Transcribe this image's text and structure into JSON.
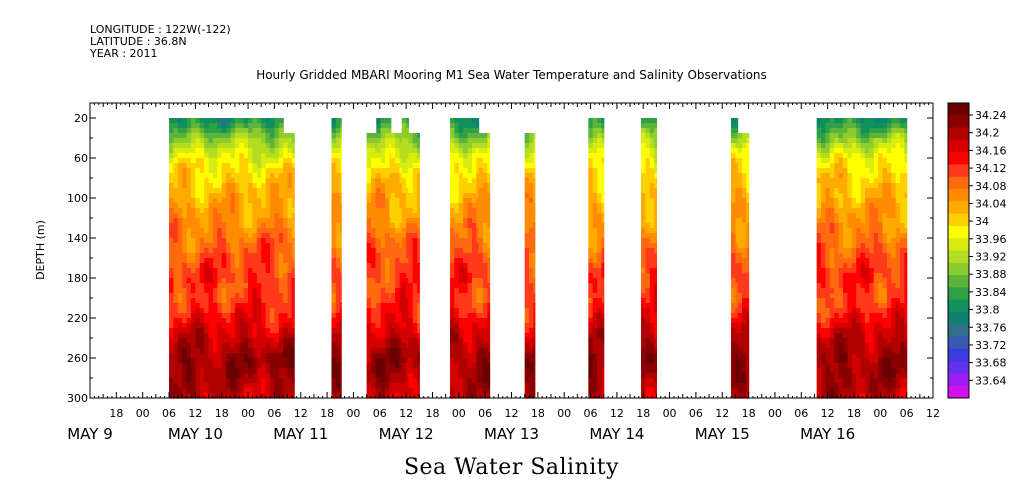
{
  "header": {
    "lines": [
      "LONGITUDE : 122W(-122)",
      "LATITUDE : 36.8N",
      "YEAR : 2011"
    ]
  },
  "chart_data": {
    "type": "heatmap",
    "title": "Hourly Gridded MBARI Mooring M1 Sea Water Temperature and Salinity Observations",
    "footer": "Sea Water Salinity",
    "ylabel": "DEPTH (m)",
    "y_reversed": true,
    "ylim": [
      300,
      5
    ],
    "y_ticks": [
      20,
      60,
      100,
      140,
      180,
      220,
      260,
      300
    ],
    "x_hour_ticks": [
      "18",
      "00",
      "06",
      "12",
      "18",
      "00",
      "06",
      "12",
      "18",
      "00",
      "06",
      "12",
      "18",
      "00",
      "06",
      "12",
      "18",
      "00",
      "06",
      "12",
      "18",
      "00",
      "06",
      "12",
      "18",
      "00",
      "06",
      "12",
      "18",
      "00",
      "06",
      "12"
    ],
    "x_day_labels": [
      "MAY  9",
      "MAY 10",
      "MAY 11",
      "MAY 12",
      "MAY 13",
      "MAY 14",
      "MAY 15",
      "MAY 16"
    ],
    "colorbar": {
      "levels": [
        "34.24",
        "34.2",
        "34.16",
        "34.12",
        "34.08",
        "34.04",
        "34",
        "33.96",
        "33.92",
        "33.88",
        "33.84",
        "33.8",
        "33.76",
        "33.72",
        "33.68",
        "33.64"
      ],
      "colors": [
        "#6a0000",
        "#8a0000",
        "#b00000",
        "#d40000",
        "#ff0000",
        "#ff3a1a",
        "#ff6a10",
        "#ff8c00",
        "#ffaa00",
        "#ffd000",
        "#ffff00",
        "#d8ec10",
        "#b4dc20",
        "#8ccc2c",
        "#5cb43c",
        "#30a044",
        "#10905c",
        "#108070",
        "#306e8a",
        "#3858b4",
        "#3a3ade",
        "#6430f0",
        "#9a1ef2",
        "#d010f0"
      ]
    },
    "data_segments": [
      {
        "start_hour": 30,
        "end_hour": 56,
        "top_depth": 20
      },
      {
        "start_hour": 56,
        "end_hour": 58.5,
        "top_depth": 35
      },
      {
        "start_hour": 67,
        "end_hour": 69.2,
        "top_depth": 20
      },
      {
        "start_hour": 75,
        "end_hour": 77.2,
        "top_depth": 35
      },
      {
        "start_hour": 77.2,
        "end_hour": 80.5,
        "top_depth": 20
      },
      {
        "start_hour": 80.5,
        "end_hour": 83,
        "top_depth": 35
      },
      {
        "start_hour": 83,
        "end_hour": 84.5,
        "top_depth": 20
      },
      {
        "start_hour": 84.5,
        "end_hour": 87,
        "top_depth": 35
      },
      {
        "start_hour": 94,
        "end_hour": 100.5,
        "top_depth": 20
      },
      {
        "start_hour": 100.5,
        "end_hour": 103,
        "top_depth": 35
      },
      {
        "start_hour": 111,
        "end_hour": 113.3,
        "top_depth": 35
      },
      {
        "start_hour": 125.5,
        "end_hour": 129,
        "top_depth": 20
      },
      {
        "start_hour": 137.5,
        "end_hour": 141,
        "top_depth": 20
      },
      {
        "start_hour": 158,
        "end_hour": 159.5,
        "top_depth": 20
      },
      {
        "start_hour": 159.5,
        "end_hour": 162,
        "top_depth": 35
      },
      {
        "start_hour": 177.5,
        "end_hour": 198,
        "top_depth": 20
      }
    ],
    "salinity_profile": [
      {
        "depth": 20,
        "salinity": 33.82
      },
      {
        "depth": 40,
        "salinity": 33.9
      },
      {
        "depth": 60,
        "salinity": 33.97
      },
      {
        "depth": 80,
        "salinity": 34.01
      },
      {
        "depth": 100,
        "salinity": 34.03
      },
      {
        "depth": 120,
        "salinity": 34.05
      },
      {
        "depth": 140,
        "salinity": 34.08
      },
      {
        "depth": 160,
        "salinity": 34.1
      },
      {
        "depth": 180,
        "salinity": 34.12
      },
      {
        "depth": 200,
        "salinity": 34.11
      },
      {
        "depth": 220,
        "salinity": 34.14
      },
      {
        "depth": 240,
        "salinity": 34.18
      },
      {
        "depth": 260,
        "salinity": 34.21
      },
      {
        "depth": 280,
        "salinity": 34.2
      },
      {
        "depth": 300,
        "salinity": 34.18
      }
    ]
  }
}
